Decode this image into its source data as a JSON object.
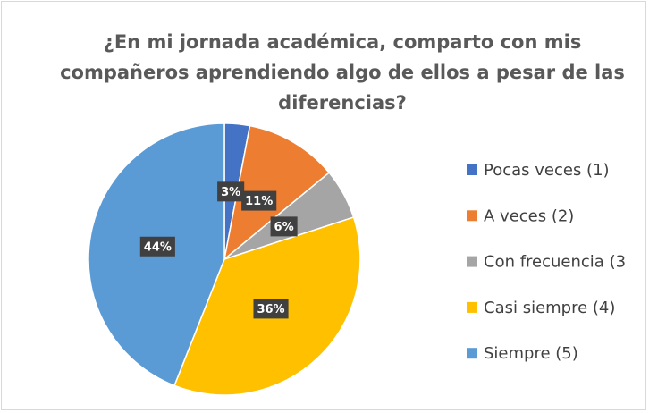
{
  "chart_data": {
    "type": "pie",
    "title": "¿En mi jornada académica, comparto con mis compañeros aprendiendo algo de ellos a pesar de las diferencias?",
    "categories": [
      "Pocas veces (1)",
      "A veces (2)",
      "Con frecuencia (3",
      "Casi siempre (4)",
      "Siempre (5)"
    ],
    "values": [
      3,
      11,
      6,
      36,
      44
    ],
    "value_labels": [
      "3%",
      "11%",
      "6%",
      "36%",
      "44%"
    ],
    "colors": [
      "#4472c4",
      "#ed7d31",
      "#a5a5a5",
      "#ffc000",
      "#5b9bd5"
    ],
    "legend": "right"
  }
}
